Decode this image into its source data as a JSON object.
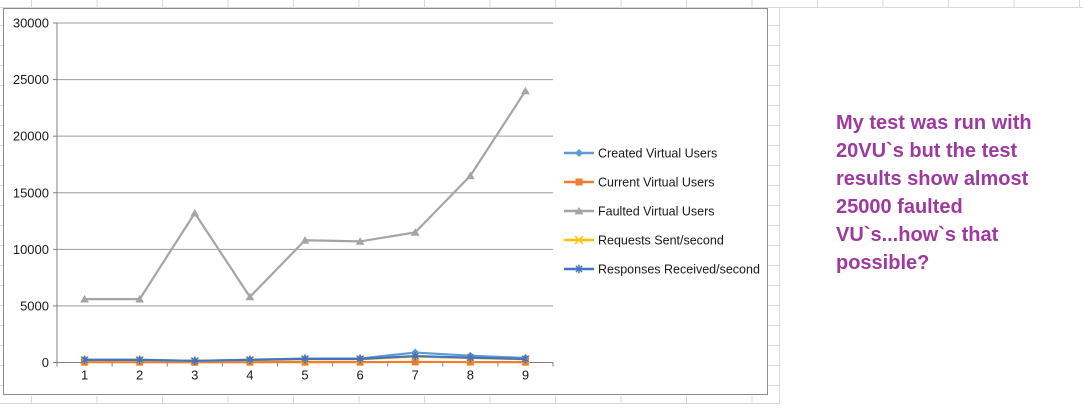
{
  "chart_data": {
    "type": "line",
    "title": "",
    "x": [
      "1",
      "2",
      "3",
      "4",
      "5",
      "6",
      "7",
      "8",
      "9"
    ],
    "series": [
      {
        "name": "Created Virtual Users",
        "color": "#5B9BD5",
        "marker": "diamond",
        "values": [
          250,
          250,
          150,
          250,
          350,
          350,
          880,
          600,
          400
        ]
      },
      {
        "name": "Current Virtual Users",
        "color": "#ED7D31",
        "marker": "square",
        "values": [
          30,
          30,
          20,
          30,
          30,
          30,
          50,
          40,
          30
        ]
      },
      {
        "name": "Faulted Virtual Users",
        "color": "#A5A5A5",
        "marker": "triangle",
        "values": [
          5600,
          5600,
          13200,
          5800,
          10800,
          10700,
          11500,
          16500,
          24000
        ]
      },
      {
        "name": "Requests Sent/second",
        "color": "#FFC000",
        "marker": "x",
        "values": [
          200,
          200,
          120,
          200,
          280,
          280,
          520,
          400,
          280
        ]
      },
      {
        "name": "Responses Received/second",
        "color": "#4472C4",
        "marker": "asterisk",
        "values": [
          230,
          230,
          140,
          230,
          320,
          320,
          570,
          430,
          310
        ]
      }
    ],
    "ylim": [
      0,
      30000
    ],
    "ytick_step": 5000,
    "yticks": [
      "30000",
      "25000",
      "20000",
      "15000",
      "10000",
      "5000",
      "0"
    ],
    "xlabel": "",
    "ylabel": "",
    "grid": true,
    "legend_position": "right"
  },
  "annotation": {
    "lines": [
      "My test was run with",
      "20VU`s but the test",
      "results show almost",
      "25000 faulted",
      "VU`s...how`s that",
      "possible?"
    ],
    "color": "#9E3A9E"
  },
  "colors": {
    "sheet_gridline": "#D3D9E3",
    "chart_border": "#8C8C8C",
    "plot_gridline": "#9C9C9C",
    "axis_line": "#808080",
    "label_text": "#1a1a1a"
  }
}
